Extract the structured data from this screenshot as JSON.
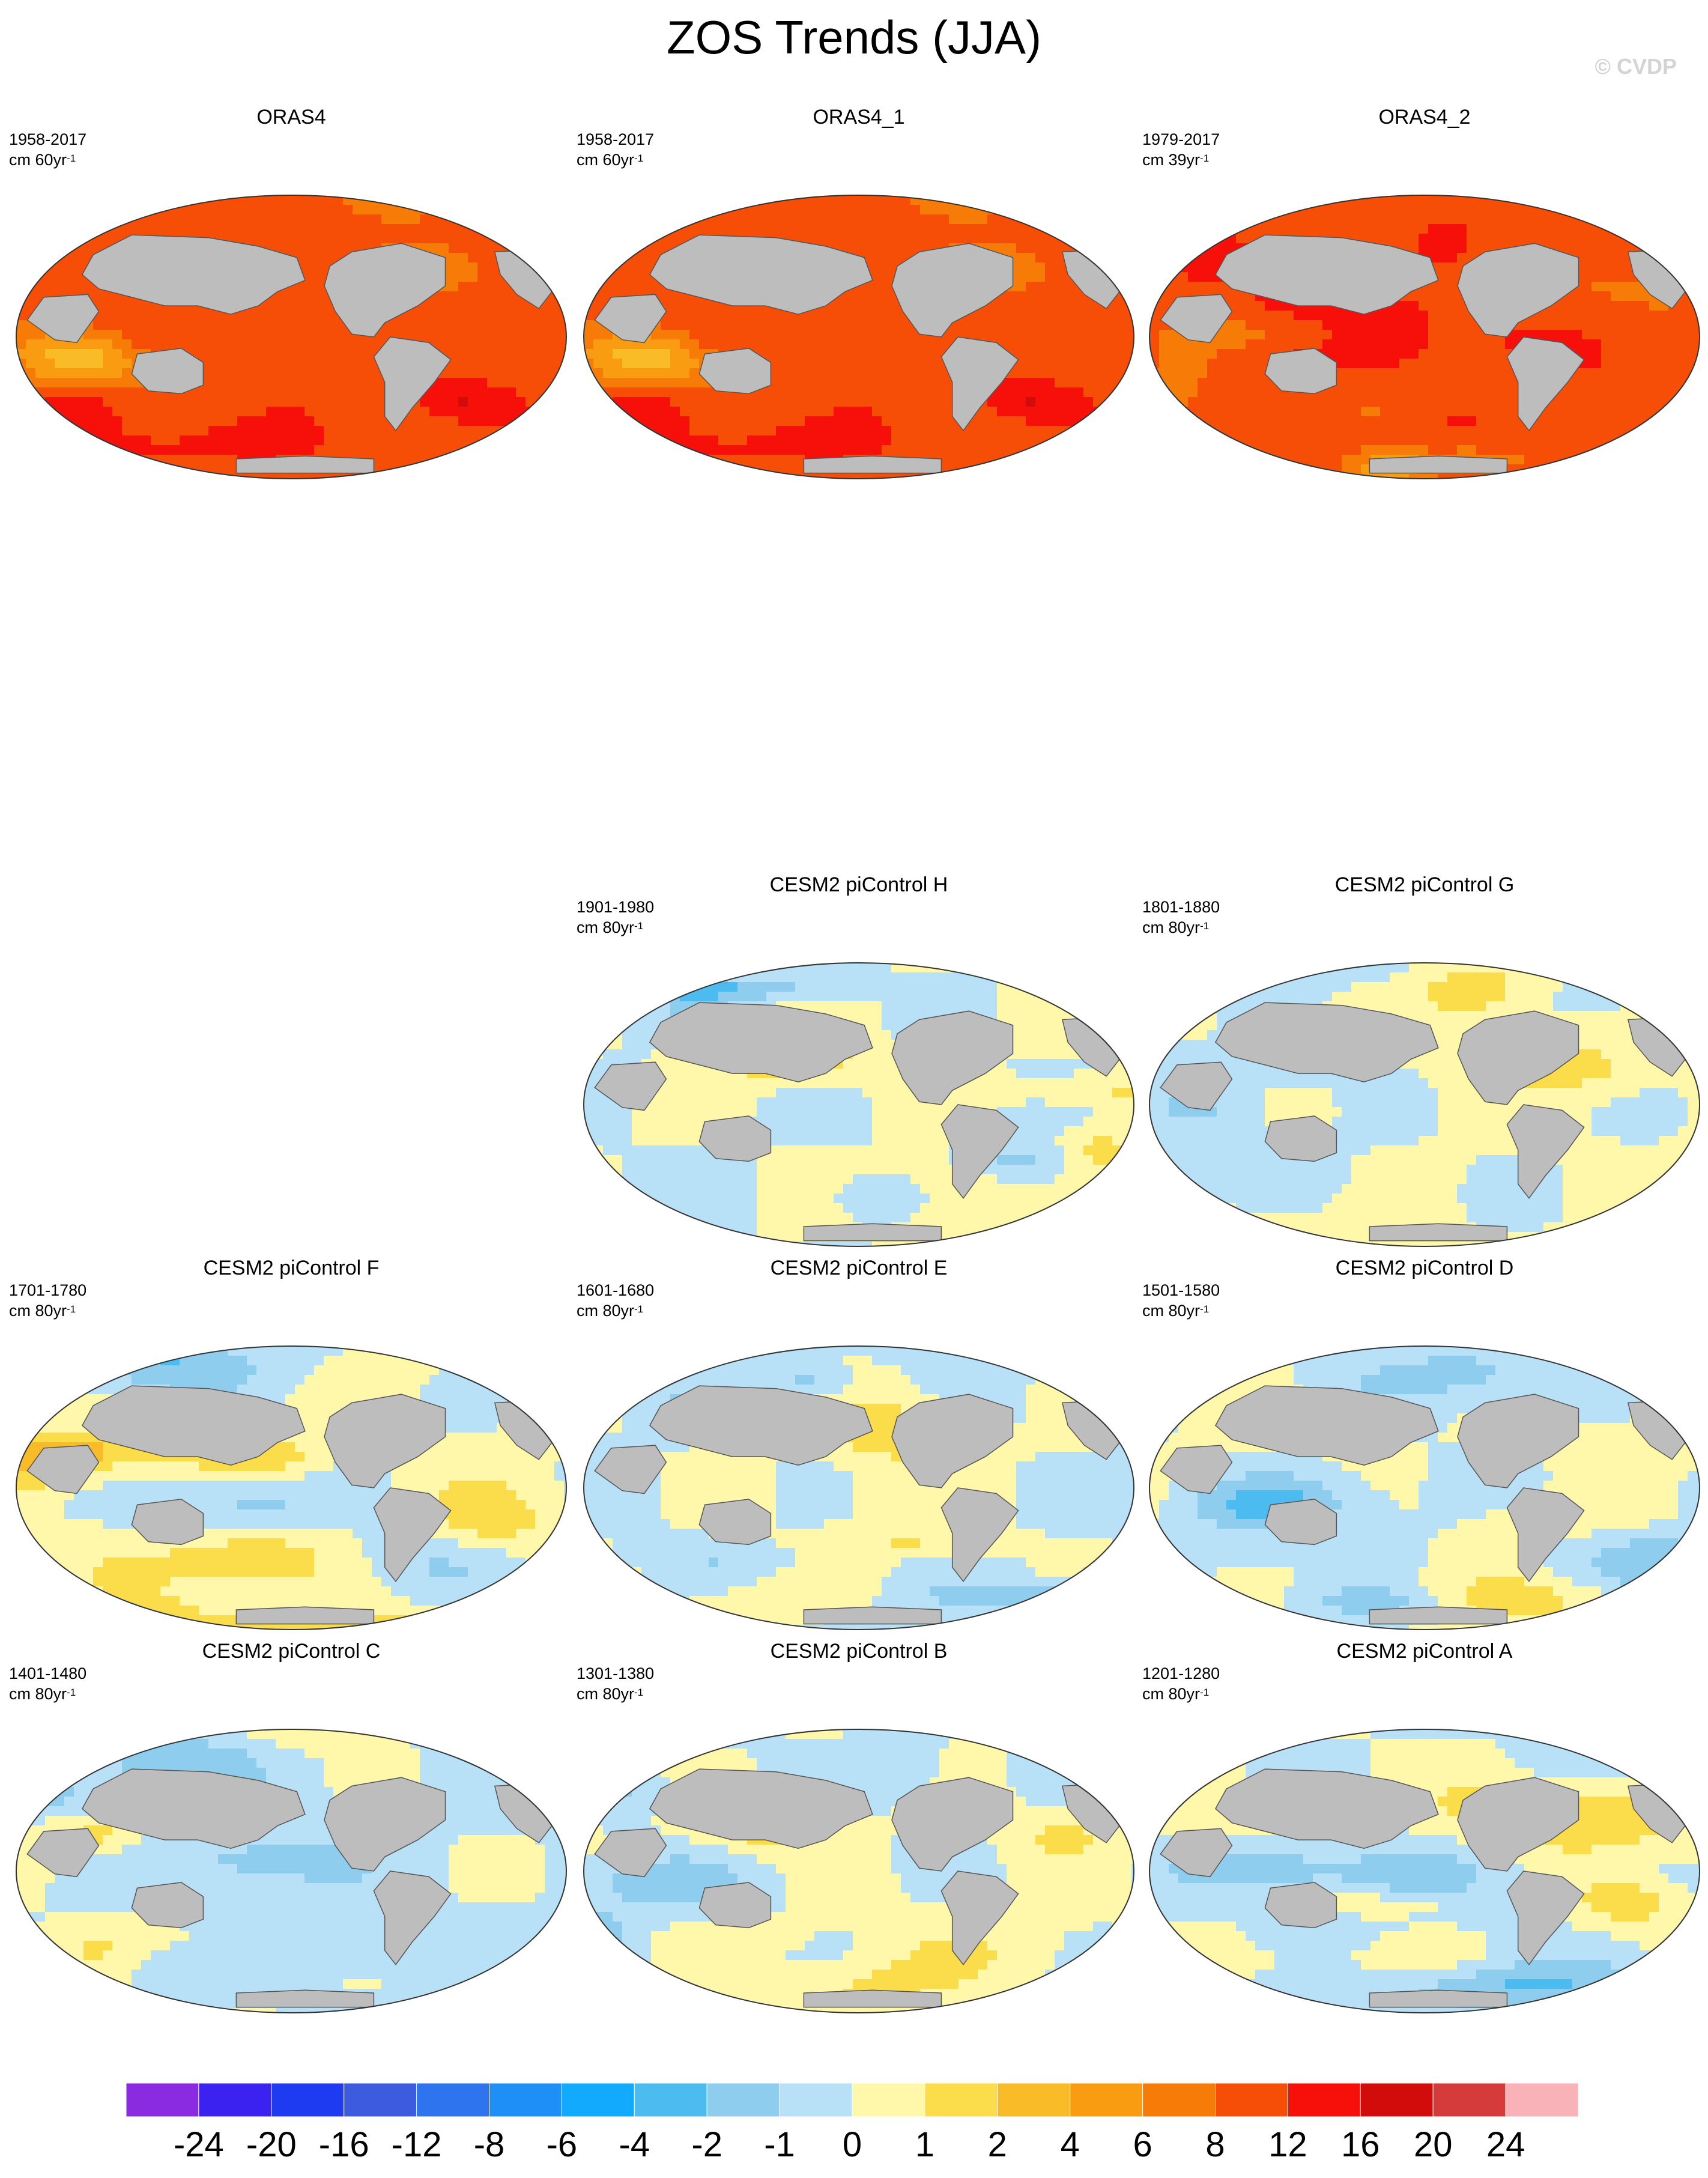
{
  "figure": {
    "title": "ZOS Trends (JJA)",
    "watermark": "© CVDP"
  },
  "colors": {
    "land": "#bdbdbd",
    "ocean_neutral": "#fff7a9",
    "scale": [
      "#8a2be2",
      "#3b22f0",
      "#1f3bf2",
      "#3d5bde",
      "#2e74ee",
      "#1f8ff8",
      "#11aafc",
      "#4cbcf0",
      "#8ecdee",
      "#b8e0f6",
      "#fff7a9",
      "#fbdc4a",
      "#f9bb27",
      "#f99c12",
      "#f77b07",
      "#f64e07",
      "#f70f0a",
      "#d20c0b",
      "#d63b3b",
      "#f9b3b8"
    ]
  },
  "chart_data": {
    "type": "heatmap",
    "title": "ZOS Trends (JJA)",
    "colorbar": {
      "levels": [
        "-24",
        "-20",
        "-16",
        "-12",
        "-8",
        "-6",
        "-4",
        "-2",
        "-1",
        "0",
        "1",
        "2",
        "4",
        "6",
        "8",
        "12",
        "16",
        "20",
        "24"
      ]
    },
    "panels": [
      {
        "id": "p0",
        "title": "ORAS4",
        "period": "1958-2017",
        "units": "cm 60yr",
        "units_exp": "-1",
        "mean": 10,
        "spread": 7,
        "seed": 11
      },
      {
        "id": "p1",
        "title": "ORAS4_1",
        "period": "1958-2017",
        "units": "cm 60yr",
        "units_exp": "-1",
        "mean": 10,
        "spread": 7,
        "seed": 11
      },
      {
        "id": "p2",
        "title": "ORAS4_2",
        "period": "1979-2017",
        "units": "cm 39yr",
        "units_exp": "-1",
        "mean": 11,
        "spread": 6,
        "seed": 23
      },
      {
        "id": "p3",
        "title": "CESM2 piControl H",
        "period": "1901-1980",
        "units": "cm 80yr",
        "units_exp": "-1",
        "mean": 0,
        "spread": 1.8,
        "seed": 31
      },
      {
        "id": "p4",
        "title": "CESM2 piControl G",
        "period": "1801-1880",
        "units": "cm 80yr",
        "units_exp": "-1",
        "mean": 0.1,
        "spread": 1.6,
        "seed": 37
      },
      {
        "id": "p5",
        "title": "CESM2 piControl F",
        "period": "1701-1780",
        "units": "cm 80yr",
        "units_exp": "-1",
        "mean": 0.2,
        "spread": 2.0,
        "seed": 41
      },
      {
        "id": "p6",
        "title": "CESM2 piControl E",
        "period": "1601-1680",
        "units": "cm 80yr",
        "units_exp": "-1",
        "mean": -0.1,
        "spread": 1.8,
        "seed": 43
      },
      {
        "id": "p7",
        "title": "CESM2 piControl D",
        "period": "1501-1580",
        "units": "cm 80yr",
        "units_exp": "-1",
        "mean": 0,
        "spread": 1.9,
        "seed": 47
      },
      {
        "id": "p8",
        "title": "CESM2 piControl C",
        "period": "1401-1480",
        "units": "cm 80yr",
        "units_exp": "-1",
        "mean": -0.1,
        "spread": 1.8,
        "seed": 53
      },
      {
        "id": "p9",
        "title": "CESM2 piControl B",
        "period": "1301-1380",
        "units": "cm 80yr",
        "units_exp": "-1",
        "mean": 0,
        "spread": 2.0,
        "seed": 59
      },
      {
        "id": "p10",
        "title": "CESM2 piControl A",
        "period": "1201-1280",
        "units": "cm 80yr",
        "units_exp": "-1",
        "mean": 0,
        "spread": 1.9,
        "seed": 61
      }
    ]
  }
}
